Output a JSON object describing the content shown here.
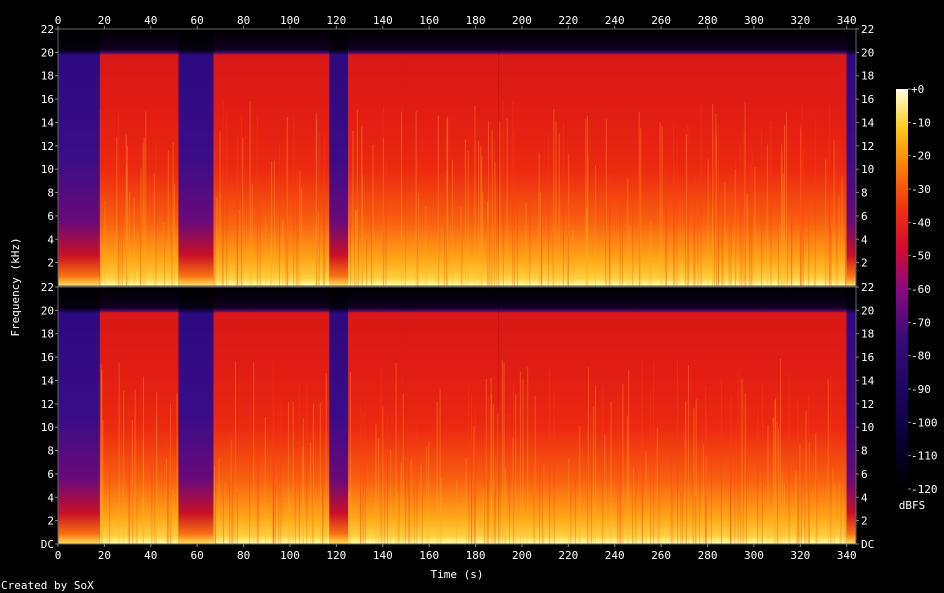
{
  "chart_data": {
    "type": "heatmap",
    "title": "",
    "xlabel": "Time (s)",
    "ylabel": "Frequency (kHz)",
    "xlim": [
      0,
      344
    ],
    "ylim": [
      0,
      22
    ],
    "x_ticks": [
      "0",
      "20",
      "40",
      "60",
      "80",
      "100",
      "120",
      "140",
      "160",
      "180",
      "200",
      "220",
      "240",
      "260",
      "280",
      "300",
      "320",
      "340"
    ],
    "y_ticks": [
      "DC",
      "2",
      "4",
      "6",
      "8",
      "10",
      "12",
      "14",
      "16",
      "18",
      "20",
      "22"
    ],
    "channels": 2,
    "colorbar": {
      "label": "dBFS",
      "range": [
        -120,
        0
      ],
      "ticks": [
        "+0",
        "-10",
        "-20",
        "-30",
        "-40",
        "-50",
        "-60",
        "-70",
        "-80",
        "-90",
        "-100",
        "-110",
        "-120"
      ]
    },
    "segments": [
      {
        "start": 0,
        "end": 18,
        "level": "quiet"
      },
      {
        "start": 18,
        "end": 52,
        "level": "loud"
      },
      {
        "start": 52,
        "end": 67,
        "level": "quiet"
      },
      {
        "start": 67,
        "end": 117,
        "level": "loud"
      },
      {
        "start": 117,
        "end": 125,
        "level": "quiet"
      },
      {
        "start": 125,
        "end": 150,
        "level": "loud"
      },
      {
        "start": 150,
        "end": 190,
        "level": "loud"
      },
      {
        "start": 190,
        "end": 340,
        "level": "loud"
      },
      {
        "start": 340,
        "end": 344,
        "level": "quiet"
      }
    ]
  },
  "footer": {
    "credit": "Created by SoX"
  }
}
